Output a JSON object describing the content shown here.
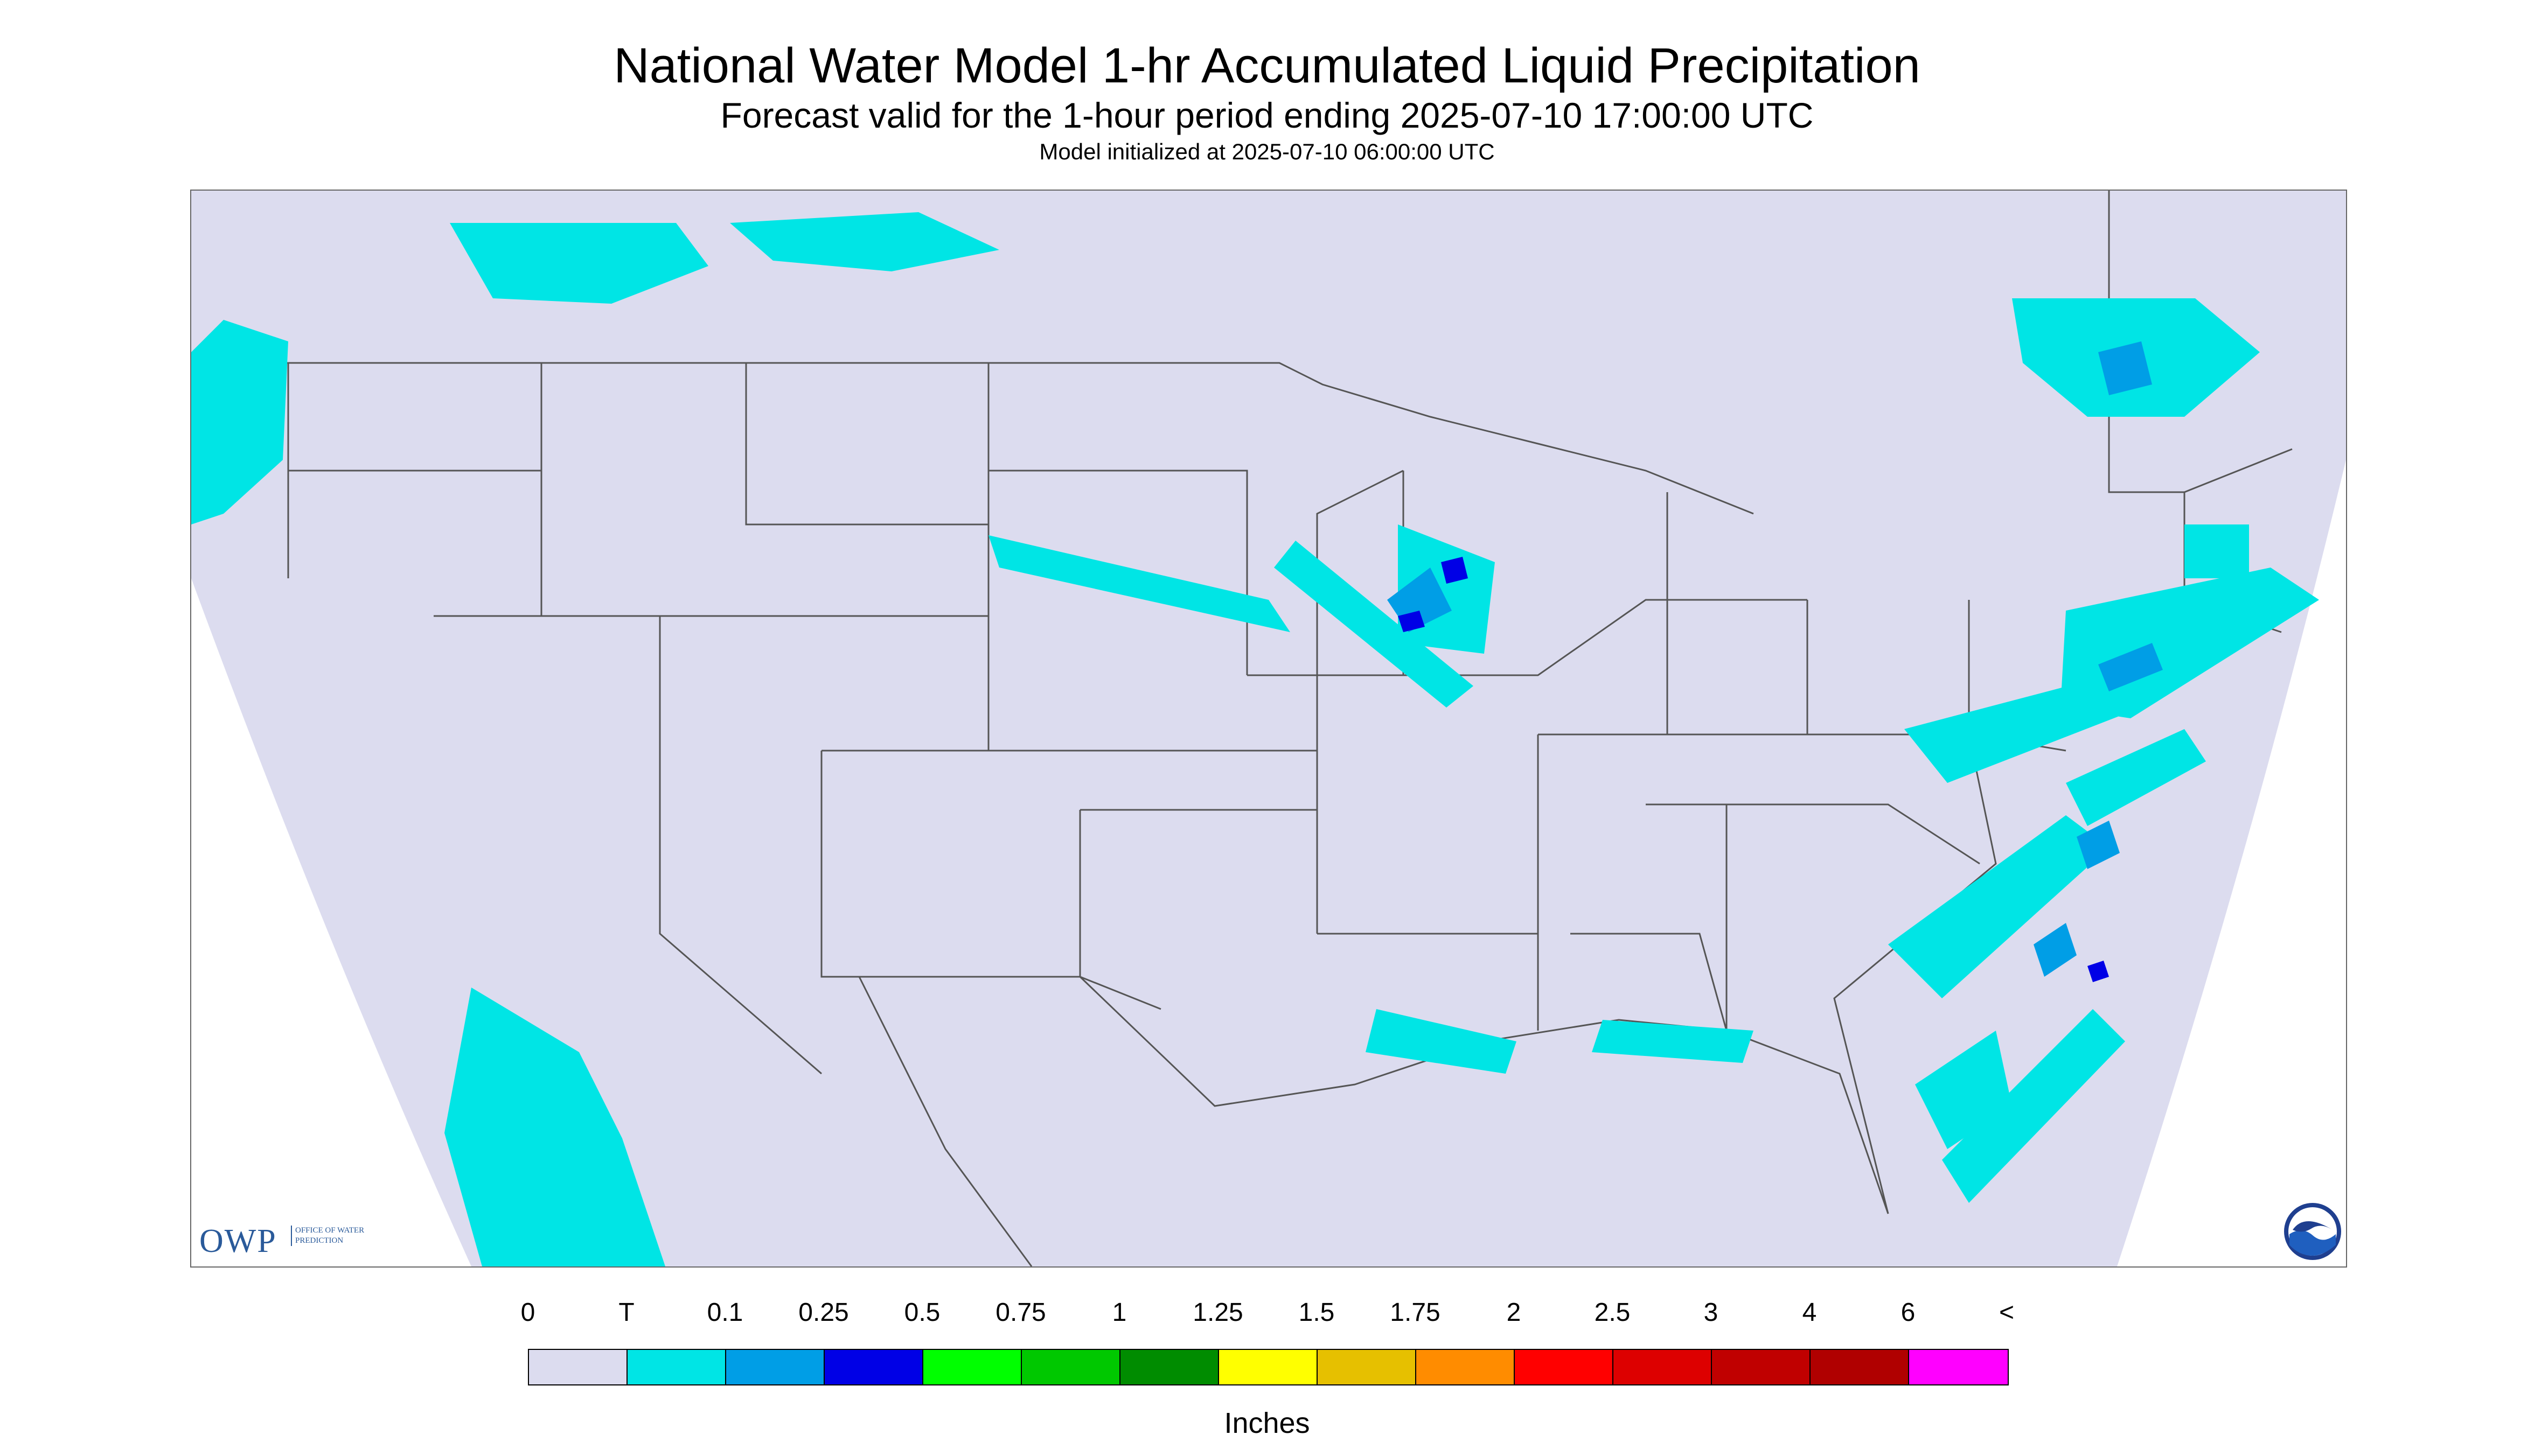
{
  "title": "National Water Model 1-hr Accumulated Liquid Precipitation",
  "subtitle": "Forecast valid for the 1-hour period ending 2025-07-10 17:00:00 UTC",
  "init_text": "Model initialized at 2025-07-10 06:00:00 UTC",
  "map": {
    "background_color": "#dcdcef",
    "precip_color": "#00e5e5",
    "moderate_color": "#009ee6",
    "heavy_color": "#0000e6",
    "boundary_color": "#555555"
  },
  "logos": {
    "owp_mark": "OWP",
    "owp_name": "OFFICE OF WATER PREDICTION",
    "noaa_icon": "noaa-logo-icon"
  },
  "legend": {
    "labels": [
      "0",
      "T",
      "0.1",
      "0.25",
      "0.5",
      "0.75",
      "1",
      "1.25",
      "1.5",
      "1.75",
      "2",
      "2.5",
      "3",
      "4",
      "6",
      "<"
    ],
    "colors": [
      "#dcdcef",
      "#00e5e5",
      "#009ee6",
      "#0000e6",
      "#00ff00",
      "#00c800",
      "#008c00",
      "#ffff00",
      "#e6c000",
      "#ff8c00",
      "#ff0000",
      "#dd0000",
      "#c00000",
      "#b00000",
      "#ff00ff",
      "#9955cc"
    ],
    "units": "Inches"
  }
}
